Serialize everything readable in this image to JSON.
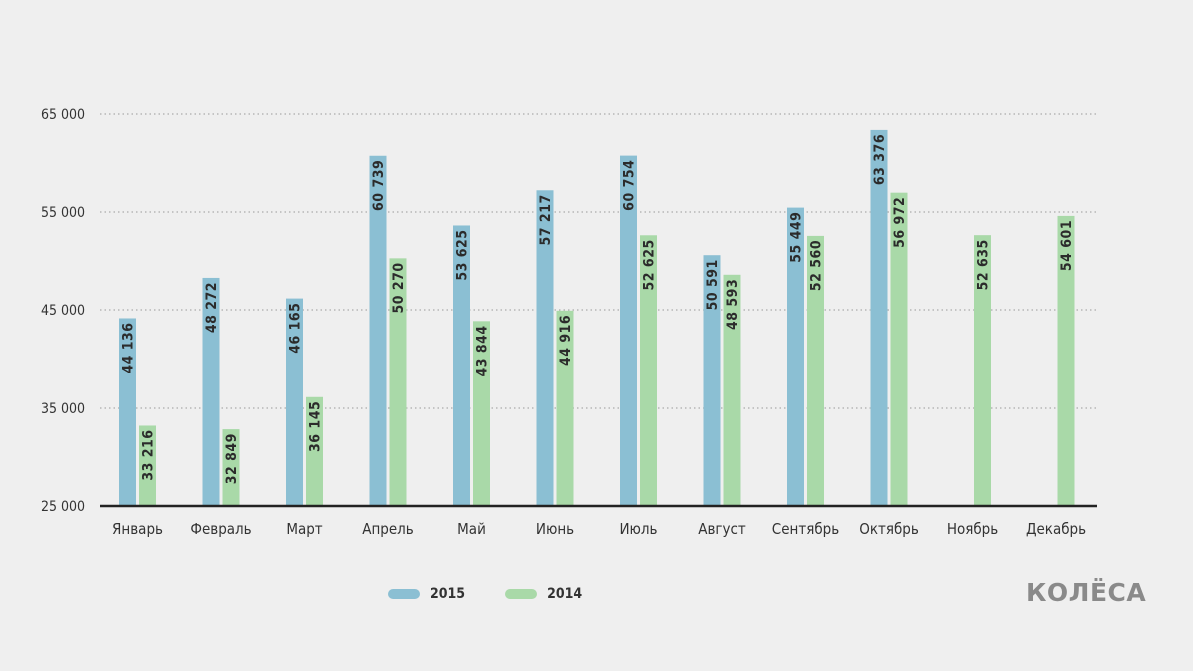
{
  "chart_data": {
    "type": "bar",
    "categories": [
      "Январь",
      "Февраль",
      "Март",
      "Апрель",
      "Май",
      "Июнь",
      "Июль",
      "Август",
      "Сентябрь",
      "Октябрь",
      "Ноябрь",
      "Декабрь"
    ],
    "series": [
      {
        "name": "2015",
        "color": "#8bbfd3",
        "values": [
          44136,
          48272,
          46165,
          60739,
          53625,
          57217,
          60754,
          50591,
          55449,
          63376,
          null,
          null
        ],
        "labels": [
          "44 136",
          "48 272",
          "46 165",
          "60 739",
          "53 625",
          "57 217",
          "60 754",
          "50 591",
          "55 449",
          "63 376",
          null,
          null
        ]
      },
      {
        "name": "2014",
        "color": "#a9d9a8",
        "values": [
          33216,
          32849,
          36145,
          50270,
          43844,
          44916,
          52625,
          48593,
          52560,
          56972,
          52635,
          54601
        ],
        "labels": [
          "33 216",
          "32 849",
          "36 145",
          "50 270",
          "43 844",
          "44 916",
          "52 625",
          "48 593",
          "52 560",
          "56 972",
          "52 635",
          "54 601"
        ]
      }
    ],
    "ylim": [
      25000,
      65000
    ],
    "yticks": [
      25000,
      35000,
      45000,
      55000,
      65000
    ],
    "ytick_labels": [
      "25 000",
      "35 000",
      "45 000",
      "55 000",
      "65 000"
    ],
    "grid": "dotted horizontal",
    "legend_position": "bottom"
  },
  "legend": {
    "items": [
      "2015",
      "2014"
    ]
  },
  "logo": {
    "text": "КОЛЁСА"
  }
}
